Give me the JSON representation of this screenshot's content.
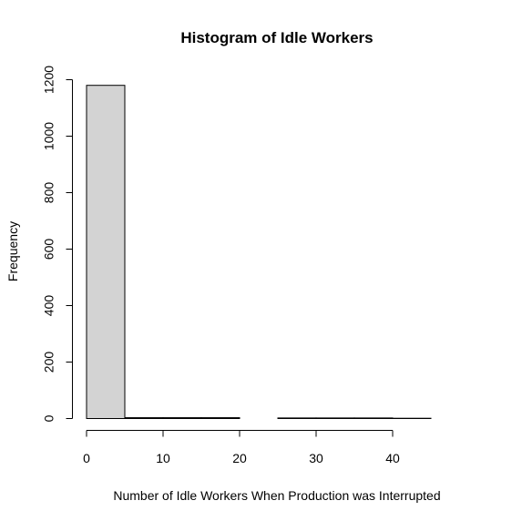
{
  "chart_data": {
    "type": "bar",
    "title": "Histogram of Idle Workers",
    "xlabel": "Number of Idle Workers When Production was Interrupted",
    "ylabel": "Frequency",
    "bins": [
      {
        "start": 0,
        "end": 5,
        "count": 1180
      },
      {
        "start": 5,
        "end": 10,
        "count": 3
      },
      {
        "start": 10,
        "end": 15,
        "count": 3
      },
      {
        "start": 15,
        "end": 20,
        "count": 3
      },
      {
        "start": 20,
        "end": 25,
        "count": 0
      },
      {
        "start": 25,
        "end": 30,
        "count": 2
      },
      {
        "start": 30,
        "end": 35,
        "count": 2
      },
      {
        "start": 35,
        "end": 40,
        "count": 2
      },
      {
        "start": 40,
        "end": 45,
        "count": 1
      }
    ],
    "xlim": [
      0,
      45
    ],
    "ylim": [
      0,
      1200
    ],
    "x_ticks": [
      0,
      10,
      20,
      30,
      40
    ],
    "y_ticks": [
      0,
      200,
      400,
      600,
      800,
      1000,
      1200
    ],
    "bar_fill": "#d3d3d3",
    "bar_stroke": "#000000",
    "grid": false,
    "legend": "none"
  }
}
